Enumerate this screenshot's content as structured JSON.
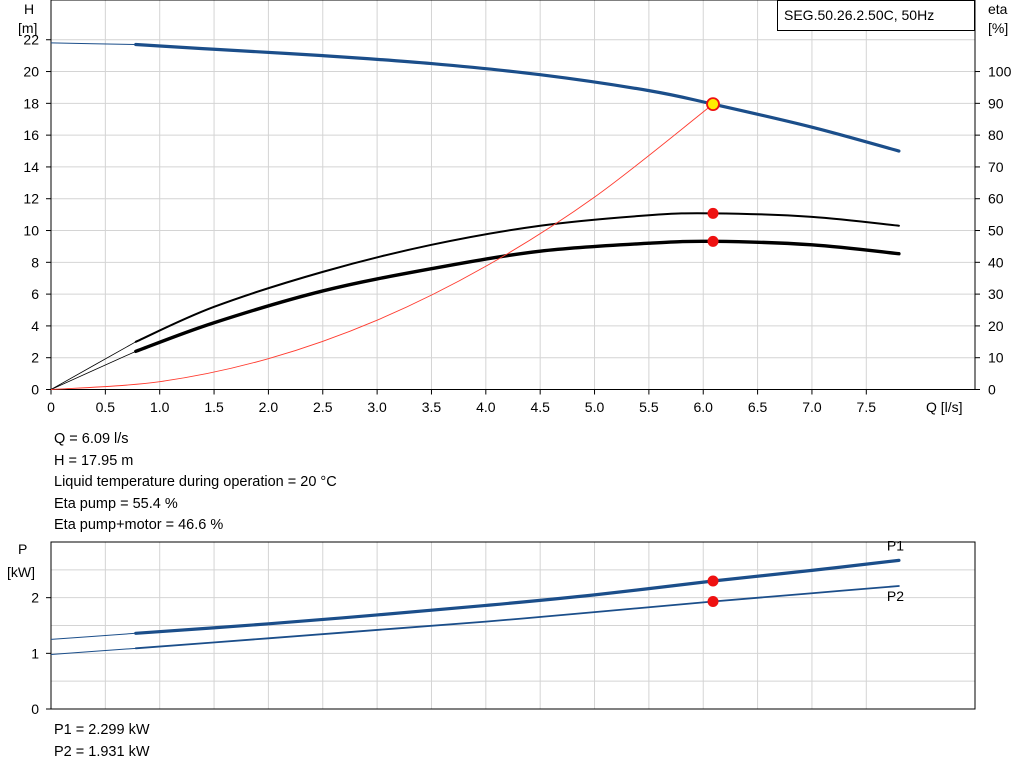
{
  "model_label": "SEG.50.26.2.50C, 50Hz",
  "colors": {
    "head_curve": "#1b4e8a",
    "power_curve": "#1b4e8a",
    "eta_curve": "#ff3b2f",
    "efficiency_curves": "#000000",
    "grid": "#d4d4d4",
    "operating_point": "#ee1111",
    "head_point_fill": "#ffee00"
  },
  "operating_info": [
    "Q = 6.09 l/s",
    "H = 17.95 m",
    "Liquid temperature during operation = 20 °C",
    "Eta pump = 55.4 %",
    "Eta pump+motor = 46.6 %"
  ],
  "power_info": [
    "P1 = 2.299 kW",
    "P2 = 1.931 kW"
  ],
  "chart_data": [
    {
      "type": "line",
      "ylabel_left": [
        "H",
        "[m]"
      ],
      "ylabel_right": [
        "eta",
        "[%]"
      ],
      "xlabel": "Q [l/s]",
      "xlim": [
        0,
        8.5
      ],
      "ylim_left": [
        0,
        24.5
      ],
      "ylim_right": [
        0,
        122.5
      ],
      "x_ticks": [
        "0",
        "0.5",
        "1.0",
        "1.5",
        "2.0",
        "2.5",
        "3.0",
        "3.5",
        "4.0",
        "4.5",
        "5.0",
        "5.5",
        "6.0",
        "6.5",
        "7.0",
        "7.5"
      ],
      "y_ticks_left": [
        "0",
        "2",
        "4",
        "6",
        "8",
        "10",
        "12",
        "14",
        "16",
        "18",
        "20",
        "22"
      ],
      "y_ticks_right": [
        "0",
        "10",
        "20",
        "30",
        "40",
        "50",
        "60",
        "70",
        "80",
        "90",
        "100"
      ],
      "grid": true,
      "series": [
        {
          "key": "head",
          "axis": "left",
          "x": [
            0,
            0.78,
            1.5,
            2.5,
            3.5,
            4.5,
            5.5,
            6.09,
            7.0,
            7.8
          ],
          "y": [
            21.8,
            21.7,
            21.4,
            21.0,
            20.5,
            19.8,
            18.8,
            17.95,
            16.5,
            15.0
          ],
          "extrapolated_below_x": 0.78
        },
        {
          "key": "eta_pump",
          "axis": "right",
          "x": [
            0,
            0.78,
            1.5,
            2.5,
            3.5,
            4.5,
            5.5,
            6.09,
            7.0,
            7.8
          ],
          "y": [
            0,
            15,
            26,
            37,
            45.5,
            51.5,
            54.8,
            55.4,
            54.3,
            51.5
          ],
          "extrapolated_below_x": 0.78
        },
        {
          "key": "eta_pump_motor",
          "axis": "right",
          "x": [
            0,
            0.78,
            1.5,
            2.5,
            3.5,
            4.5,
            5.5,
            6.09,
            7.0,
            7.8
          ],
          "y": [
            0,
            12,
            21,
            31,
            38,
            43.5,
            46,
            46.6,
            45.5,
            42.7
          ],
          "extrapolated_below_x": 0.78
        },
        {
          "key": "system_curve",
          "axis": "left",
          "x": [
            0,
            1,
            2,
            3,
            4,
            5,
            6.09
          ],
          "y": [
            0,
            0.49,
            1.94,
            4.36,
            7.75,
            12.1,
            17.95
          ]
        }
      ],
      "operating_point": {
        "q": 6.09,
        "h": 17.95,
        "eta_pump": 55.4,
        "eta_pump_motor": 46.6
      }
    },
    {
      "type": "line",
      "ylabel_left": [
        "P",
        "[kW]"
      ],
      "xlim": [
        0,
        8.5
      ],
      "ylim_left": [
        0,
        3.0
      ],
      "y_ticks_left": [
        "0",
        "1",
        "2"
      ],
      "grid": true,
      "series": [
        {
          "key": "p1",
          "name": "P1",
          "x": [
            0,
            0.78,
            2,
            3,
            4,
            5,
            6.09,
            7,
            7.8
          ],
          "y": [
            1.25,
            1.36,
            1.53,
            1.69,
            1.86,
            2.05,
            2.299,
            2.49,
            2.67
          ],
          "extrapolated_below_x": 0.78
        },
        {
          "key": "p2",
          "name": "P2",
          "x": [
            0,
            0.78,
            2,
            3,
            4,
            5,
            6.09,
            7,
            7.8
          ],
          "y": [
            0.98,
            1.09,
            1.27,
            1.42,
            1.57,
            1.74,
            1.931,
            2.08,
            2.21
          ],
          "extrapolated_below_x": 0.78
        }
      ],
      "operating_point": {
        "q": 6.09,
        "p1": 2.299,
        "p2": 1.931
      }
    }
  ]
}
